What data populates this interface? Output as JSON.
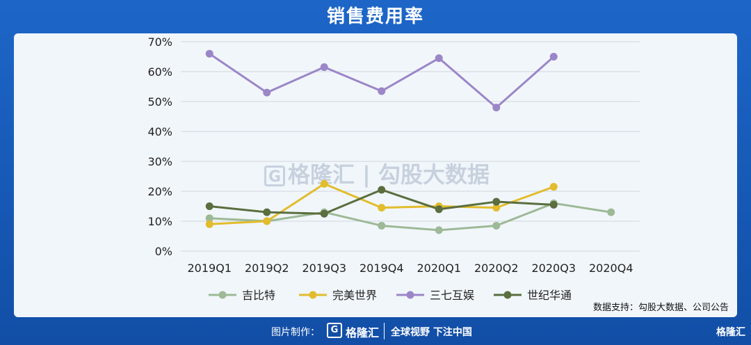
{
  "header": {
    "title": "销售费用率"
  },
  "chart_data": {
    "type": "line",
    "categories": [
      "2019Q1",
      "2019Q2",
      "2019Q3",
      "2019Q4",
      "2020Q1",
      "2020Q2",
      "2020Q3",
      "2020Q4"
    ],
    "yticks": [
      "0%",
      "10%",
      "20%",
      "30%",
      "40%",
      "50%",
      "60%",
      "70%"
    ],
    "ylim": [
      0,
      70
    ],
    "legend_position": "bottom",
    "series": [
      {
        "name": "吉比特",
        "color": "#9db996",
        "values": [
          11,
          10,
          13,
          8.5,
          7,
          8.5,
          16,
          13
        ]
      },
      {
        "name": "完美世界",
        "color": "#e2bc2c",
        "values": [
          9,
          10,
          22.5,
          14.5,
          15,
          14.5,
          21.5,
          null
        ]
      },
      {
        "name": "三七互娱",
        "color": "#9b86c8",
        "values": [
          66,
          53,
          61.5,
          53.5,
          64.5,
          48,
          65,
          null
        ]
      },
      {
        "name": "世纪华通",
        "color": "#5a6e3e",
        "values": [
          15,
          13,
          12.5,
          20.5,
          14,
          16.5,
          15.5,
          null
        ]
      }
    ]
  },
  "source": "数据支持：勾股大数据、公司公告",
  "watermark": {
    "logo_char": "G",
    "brand": "格隆汇",
    "text": "勾股大数据"
  },
  "footer": {
    "credit": "图片制作：",
    "logo_char": "G",
    "brand": "格隆汇",
    "slogan": "全球视野 下注中国",
    "corner_logo": "格隆汇"
  }
}
